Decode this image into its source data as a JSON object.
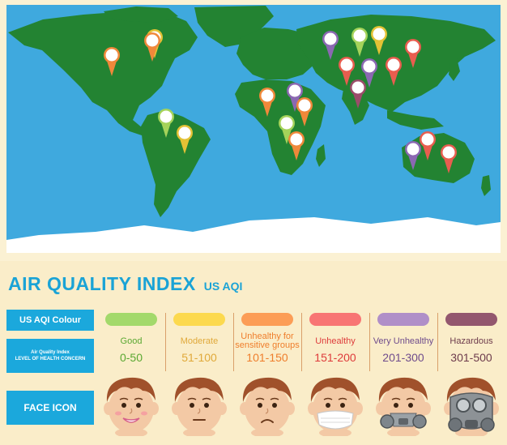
{
  "title": "AIR QUALITY INDEX",
  "subtitle": "US AQI",
  "labels": {
    "colour": "US AQI Colour",
    "index_line1": "Air Quality Index",
    "index_line2": "LEVEL OF HEALTH CONCERN",
    "face": "FACE ICON"
  },
  "levels": [
    {
      "name": "Good",
      "range": "0-50",
      "color": "#a3d96b",
      "text_color": "#5aa832",
      "face": "smile"
    },
    {
      "name": "Moderate",
      "range": "51-100",
      "color": "#fcd94e",
      "text_color": "#e0a93a",
      "face": "neutral"
    },
    {
      "name": "Unhealthy for sensitive groups",
      "range": "101-150",
      "color": "#fc9d56",
      "text_color": "#ef7e2c",
      "face": "sad"
    },
    {
      "name": "Unhealthy",
      "range": "151-200",
      "color": "#f87574",
      "text_color": "#de3b3b",
      "face": "mask"
    },
    {
      "name": "Very Unhealthy",
      "range": "201-300",
      "color": "#b08fc8",
      "text_color": "#6f4c8c",
      "face": "respirator"
    },
    {
      "name": "Hazardous",
      "range": "301-500",
      "color": "#93576e",
      "text_color": "#6d3b4c",
      "face": "gasmask"
    }
  ],
  "map": {
    "ocean_color": "#3fa9de",
    "land_color": "#238332",
    "markers": [
      {
        "color": "#f0883a"
      },
      {
        "color": "#e4c235"
      },
      {
        "color": "#8b68b2"
      },
      {
        "color": "#a5d35a"
      },
      {
        "color": "#e4c235"
      },
      {
        "color": "#e85d4f"
      },
      {
        "color": "#e85d4f"
      },
      {
        "color": "#8b68b2"
      },
      {
        "color": "#e85d4f"
      },
      {
        "color": "#9c4c6a"
      },
      {
        "color": "#a5d35a"
      },
      {
        "color": "#e4c235"
      },
      {
        "color": "#f0883a"
      },
      {
        "color": "#8b68b2"
      },
      {
        "color": "#f0883a"
      },
      {
        "color": "#a5d35a"
      },
      {
        "color": "#f0883a"
      },
      {
        "color": "#8b68b2"
      },
      {
        "color": "#e85d4f"
      },
      {
        "color": "#e85d4f"
      },
      {
        "color": "#f0883a"
      },
      {
        "color": "#8b68b2"
      },
      {
        "color": "#e4c235"
      },
      {
        "color": "#e85d4f"
      }
    ]
  }
}
